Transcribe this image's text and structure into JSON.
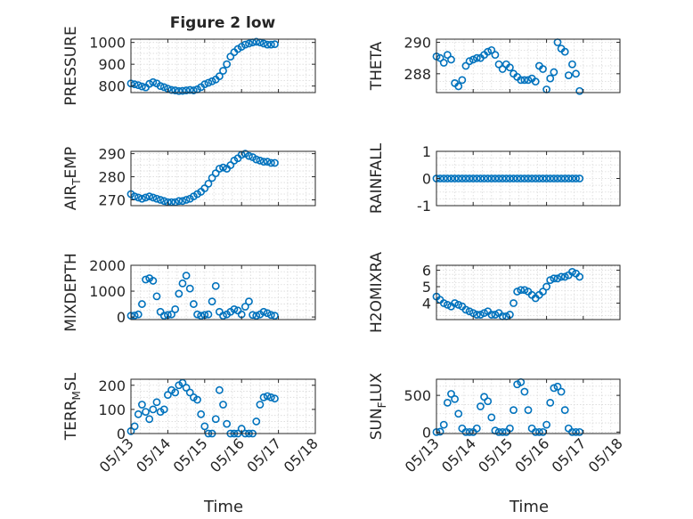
{
  "figure": {
    "title": "Figure 2 low",
    "xlabel": "Time",
    "xticks": [
      "05/13",
      "05/14",
      "05/15",
      "05/16",
      "05/17",
      "05/18"
    ]
  },
  "colors": {
    "marker": "#0072BD",
    "grid": "#d9d9d9",
    "axis": "#262626"
  },
  "chart_data": [
    {
      "type": "scatter",
      "ylabel": "PRESSURE",
      "ylim": [
        770,
        1015
      ],
      "yticks": [
        800,
        900,
        1000
      ],
      "x": [
        13.0,
        13.1,
        13.2,
        13.3,
        13.4,
        13.5,
        13.6,
        13.7,
        13.8,
        13.9,
        14.0,
        14.1,
        14.2,
        14.3,
        14.4,
        14.5,
        14.6,
        14.7,
        14.8,
        14.9,
        15.0,
        15.1,
        15.2,
        15.3,
        15.4,
        15.5,
        15.6,
        15.7,
        15.8,
        15.9,
        16.0,
        16.1,
        16.2,
        16.3,
        16.4,
        16.5,
        16.6,
        16.7,
        16.8,
        16.9
      ],
      "y": [
        812,
        808,
        804,
        798,
        794,
        810,
        818,
        812,
        800,
        795,
        788,
        782,
        780,
        777,
        778,
        780,
        782,
        780,
        785,
        795,
        808,
        815,
        822,
        830,
        845,
        870,
        900,
        935,
        955,
        970,
        980,
        990,
        995,
        1000,
        1003,
        1000,
        995,
        990,
        990,
        992
      ]
    },
    {
      "type": "scatter",
      "ylabel": "THETA",
      "ylim": [
        286.8,
        290.2
      ],
      "yticks": [
        288,
        290
      ],
      "x": [
        13.0,
        13.1,
        13.2,
        13.3,
        13.4,
        13.5,
        13.6,
        13.7,
        13.8,
        13.9,
        14.0,
        14.1,
        14.2,
        14.3,
        14.4,
        14.5,
        14.6,
        14.7,
        14.8,
        14.9,
        15.0,
        15.1,
        15.2,
        15.3,
        15.4,
        15.5,
        15.6,
        15.7,
        15.8,
        15.9,
        16.0,
        16.1,
        16.2,
        16.3,
        16.4,
        16.5,
        16.6,
        16.7,
        16.8,
        16.9
      ],
      "y": [
        289.1,
        289.0,
        288.7,
        289.2,
        288.9,
        287.4,
        287.2,
        287.6,
        288.5,
        288.8,
        288.9,
        289.0,
        289.0,
        289.2,
        289.4,
        289.5,
        289.2,
        288.6,
        288.3,
        288.6,
        288.4,
        288.0,
        287.8,
        287.6,
        287.6,
        287.6,
        287.7,
        287.5,
        288.5,
        288.3,
        287.0,
        287.7,
        288.1,
        290.0,
        289.6,
        289.4,
        287.9,
        288.6,
        288.0,
        286.9
      ]
    },
    {
      "type": "scatter",
      "ylabel": "AIR_TEMP",
      "ylim": [
        267.5,
        291
      ],
      "yticks": [
        270,
        280,
        290
      ],
      "x": [
        13.0,
        13.1,
        13.2,
        13.3,
        13.4,
        13.5,
        13.6,
        13.7,
        13.8,
        13.9,
        14.0,
        14.1,
        14.2,
        14.3,
        14.4,
        14.5,
        14.6,
        14.7,
        14.8,
        14.9,
        15.0,
        15.1,
        15.2,
        15.3,
        15.4,
        15.5,
        15.6,
        15.7,
        15.8,
        15.9,
        16.0,
        16.1,
        16.2,
        16.3,
        16.4,
        16.5,
        16.6,
        16.7,
        16.8,
        16.9
      ],
      "y": [
        272.5,
        271.5,
        271.0,
        270.5,
        271.0,
        271.5,
        271.0,
        270.5,
        270.0,
        269.5,
        269.0,
        269.0,
        269.0,
        269.5,
        269.5,
        270.0,
        270.5,
        271.5,
        272.5,
        273.5,
        275.0,
        277.0,
        279.5,
        281.5,
        283.5,
        284.0,
        283.5,
        285.0,
        287.0,
        288.0,
        289.5,
        290.0,
        289.0,
        288.5,
        287.5,
        287.0,
        286.5,
        286.5,
        286.0,
        286.0
      ]
    },
    {
      "type": "scatter",
      "ylabel": "RAINFALL",
      "ylim": [
        -1,
        1
      ],
      "yticks": [
        -1,
        0,
        1
      ],
      "x": [
        13.0,
        13.1,
        13.2,
        13.3,
        13.4,
        13.5,
        13.6,
        13.7,
        13.8,
        13.9,
        14.0,
        14.1,
        14.2,
        14.3,
        14.4,
        14.5,
        14.6,
        14.7,
        14.8,
        14.9,
        15.0,
        15.1,
        15.2,
        15.3,
        15.4,
        15.5,
        15.6,
        15.7,
        15.8,
        15.9,
        16.0,
        16.1,
        16.2,
        16.3,
        16.4,
        16.5,
        16.6,
        16.7,
        16.8,
        16.9
      ],
      "y": [
        0,
        0,
        0,
        0,
        0,
        0,
        0,
        0,
        0,
        0,
        0,
        0,
        0,
        0,
        0,
        0,
        0,
        0,
        0,
        0,
        0,
        0,
        0,
        0,
        0,
        0,
        0,
        0,
        0,
        0,
        0,
        0,
        0,
        0,
        0,
        0,
        0,
        0,
        0,
        0
      ]
    },
    {
      "type": "scatter",
      "ylabel": "MIXDEPTH",
      "ylim": [
        -100,
        2000
      ],
      "yticks": [
        0,
        1000,
        2000
      ],
      "x": [
        13.0,
        13.1,
        13.2,
        13.3,
        13.4,
        13.5,
        13.6,
        13.7,
        13.8,
        13.9,
        14.0,
        14.1,
        14.2,
        14.3,
        14.4,
        14.5,
        14.6,
        14.7,
        14.8,
        14.9,
        15.0,
        15.1,
        15.2,
        15.3,
        15.4,
        15.5,
        15.6,
        15.7,
        15.8,
        15.9,
        16.0,
        16.1,
        16.2,
        16.3,
        16.4,
        16.5,
        16.6,
        16.7,
        16.8,
        16.9
      ],
      "y": [
        50,
        60,
        100,
        500,
        1450,
        1500,
        1400,
        800,
        200,
        50,
        80,
        100,
        300,
        900,
        1300,
        1600,
        1100,
        500,
        100,
        50,
        80,
        100,
        600,
        1200,
        200,
        50,
        100,
        200,
        300,
        250,
        100,
        400,
        600,
        80,
        50,
        100,
        200,
        150,
        80,
        50
      ]
    },
    {
      "type": "scatter",
      "ylabel": "H2OMIXRA",
      "ylim": [
        3.0,
        6.3
      ],
      "yticks": [
        4,
        5,
        6
      ],
      "x": [
        13.0,
        13.1,
        13.2,
        13.3,
        13.4,
        13.5,
        13.6,
        13.7,
        13.8,
        13.9,
        14.0,
        14.1,
        14.2,
        14.3,
        14.4,
        14.5,
        14.6,
        14.7,
        14.8,
        14.9,
        15.0,
        15.1,
        15.2,
        15.3,
        15.4,
        15.5,
        15.6,
        15.7,
        15.8,
        15.9,
        16.0,
        16.1,
        16.2,
        16.3,
        16.4,
        16.5,
        16.6,
        16.7,
        16.8,
        16.9
      ],
      "y": [
        4.4,
        4.2,
        4.0,
        3.9,
        3.8,
        4.0,
        3.9,
        3.8,
        3.6,
        3.5,
        3.4,
        3.3,
        3.3,
        3.4,
        3.5,
        3.3,
        3.3,
        3.4,
        3.2,
        3.2,
        3.3,
        4.0,
        4.7,
        4.8,
        4.8,
        4.7,
        4.5,
        4.3,
        4.5,
        4.7,
        5.0,
        5.4,
        5.5,
        5.5,
        5.6,
        5.6,
        5.7,
        5.9,
        5.8,
        5.6
      ]
    },
    {
      "type": "scatter",
      "ylabel": "TERR_MSL",
      "ylim": [
        0,
        225
      ],
      "yticks": [
        0,
        100,
        200
      ],
      "x": [
        13.0,
        13.1,
        13.2,
        13.3,
        13.4,
        13.5,
        13.6,
        13.7,
        13.8,
        13.9,
        14.0,
        14.1,
        14.2,
        14.3,
        14.4,
        14.5,
        14.6,
        14.7,
        14.8,
        14.9,
        15.0,
        15.1,
        15.2,
        15.3,
        15.4,
        15.5,
        15.6,
        15.7,
        15.8,
        15.9,
        16.0,
        16.1,
        16.2,
        16.3,
        16.4,
        16.5,
        16.6,
        16.7,
        16.8,
        16.9
      ],
      "y": [
        10,
        30,
        80,
        120,
        90,
        60,
        100,
        130,
        90,
        100,
        160,
        180,
        170,
        200,
        210,
        190,
        170,
        150,
        140,
        80,
        30,
        0,
        0,
        60,
        180,
        120,
        40,
        0,
        0,
        0,
        20,
        0,
        0,
        0,
        50,
        120,
        150,
        155,
        150,
        145
      ]
    },
    {
      "type": "scatter",
      "ylabel": "SUN_FLUX",
      "ylim": [
        -20,
        720
      ],
      "yticks": [
        0,
        500
      ],
      "x": [
        13.0,
        13.1,
        13.2,
        13.3,
        13.4,
        13.5,
        13.6,
        13.7,
        13.8,
        13.9,
        14.0,
        14.1,
        14.2,
        14.3,
        14.4,
        14.5,
        14.6,
        14.7,
        14.8,
        14.9,
        15.0,
        15.1,
        15.2,
        15.3,
        15.4,
        15.5,
        15.6,
        15.7,
        15.8,
        15.9,
        16.0,
        16.1,
        16.2,
        16.3,
        16.4,
        16.5,
        16.6,
        16.7,
        16.8,
        16.9
      ],
      "y": [
        0,
        5,
        100,
        400,
        520,
        450,
        250,
        50,
        0,
        0,
        0,
        50,
        350,
        480,
        420,
        200,
        20,
        0,
        0,
        0,
        50,
        300,
        650,
        680,
        550,
        300,
        50,
        0,
        0,
        0,
        100,
        400,
        600,
        620,
        550,
        300,
        50,
        0,
        0,
        0
      ]
    }
  ]
}
